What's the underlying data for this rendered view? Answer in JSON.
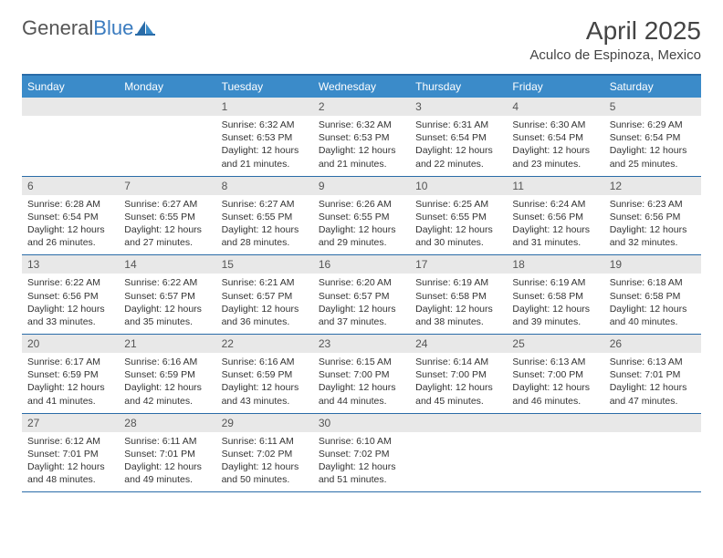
{
  "logo": {
    "general": "General",
    "blue": "Blue"
  },
  "title": "April 2025",
  "location": "Aculco de Espinoza, Mexico",
  "colors": {
    "header_bg": "#3b8bc9",
    "header_text": "#ffffff",
    "border": "#2a6ca8",
    "daynum_bg": "#e8e8e8",
    "body_text": "#333333",
    "logo_blue": "#3a7bbf"
  },
  "day_headers": [
    "Sunday",
    "Monday",
    "Tuesday",
    "Wednesday",
    "Thursday",
    "Friday",
    "Saturday"
  ],
  "weeks": [
    [
      {
        "n": "",
        "lines": []
      },
      {
        "n": "",
        "lines": []
      },
      {
        "n": "1",
        "lines": [
          "Sunrise: 6:32 AM",
          "Sunset: 6:53 PM",
          "Daylight: 12 hours and 21 minutes."
        ]
      },
      {
        "n": "2",
        "lines": [
          "Sunrise: 6:32 AM",
          "Sunset: 6:53 PM",
          "Daylight: 12 hours and 21 minutes."
        ]
      },
      {
        "n": "3",
        "lines": [
          "Sunrise: 6:31 AM",
          "Sunset: 6:54 PM",
          "Daylight: 12 hours and 22 minutes."
        ]
      },
      {
        "n": "4",
        "lines": [
          "Sunrise: 6:30 AM",
          "Sunset: 6:54 PM",
          "Daylight: 12 hours and 23 minutes."
        ]
      },
      {
        "n": "5",
        "lines": [
          "Sunrise: 6:29 AM",
          "Sunset: 6:54 PM",
          "Daylight: 12 hours and 25 minutes."
        ]
      }
    ],
    [
      {
        "n": "6",
        "lines": [
          "Sunrise: 6:28 AM",
          "Sunset: 6:54 PM",
          "Daylight: 12 hours and 26 minutes."
        ]
      },
      {
        "n": "7",
        "lines": [
          "Sunrise: 6:27 AM",
          "Sunset: 6:55 PM",
          "Daylight: 12 hours and 27 minutes."
        ]
      },
      {
        "n": "8",
        "lines": [
          "Sunrise: 6:27 AM",
          "Sunset: 6:55 PM",
          "Daylight: 12 hours and 28 minutes."
        ]
      },
      {
        "n": "9",
        "lines": [
          "Sunrise: 6:26 AM",
          "Sunset: 6:55 PM",
          "Daylight: 12 hours and 29 minutes."
        ]
      },
      {
        "n": "10",
        "lines": [
          "Sunrise: 6:25 AM",
          "Sunset: 6:55 PM",
          "Daylight: 12 hours and 30 minutes."
        ]
      },
      {
        "n": "11",
        "lines": [
          "Sunrise: 6:24 AM",
          "Sunset: 6:56 PM",
          "Daylight: 12 hours and 31 minutes."
        ]
      },
      {
        "n": "12",
        "lines": [
          "Sunrise: 6:23 AM",
          "Sunset: 6:56 PM",
          "Daylight: 12 hours and 32 minutes."
        ]
      }
    ],
    [
      {
        "n": "13",
        "lines": [
          "Sunrise: 6:22 AM",
          "Sunset: 6:56 PM",
          "Daylight: 12 hours and 33 minutes."
        ]
      },
      {
        "n": "14",
        "lines": [
          "Sunrise: 6:22 AM",
          "Sunset: 6:57 PM",
          "Daylight: 12 hours and 35 minutes."
        ]
      },
      {
        "n": "15",
        "lines": [
          "Sunrise: 6:21 AM",
          "Sunset: 6:57 PM",
          "Daylight: 12 hours and 36 minutes."
        ]
      },
      {
        "n": "16",
        "lines": [
          "Sunrise: 6:20 AM",
          "Sunset: 6:57 PM",
          "Daylight: 12 hours and 37 minutes."
        ]
      },
      {
        "n": "17",
        "lines": [
          "Sunrise: 6:19 AM",
          "Sunset: 6:58 PM",
          "Daylight: 12 hours and 38 minutes."
        ]
      },
      {
        "n": "18",
        "lines": [
          "Sunrise: 6:19 AM",
          "Sunset: 6:58 PM",
          "Daylight: 12 hours and 39 minutes."
        ]
      },
      {
        "n": "19",
        "lines": [
          "Sunrise: 6:18 AM",
          "Sunset: 6:58 PM",
          "Daylight: 12 hours and 40 minutes."
        ]
      }
    ],
    [
      {
        "n": "20",
        "lines": [
          "Sunrise: 6:17 AM",
          "Sunset: 6:59 PM",
          "Daylight: 12 hours and 41 minutes."
        ]
      },
      {
        "n": "21",
        "lines": [
          "Sunrise: 6:16 AM",
          "Sunset: 6:59 PM",
          "Daylight: 12 hours and 42 minutes."
        ]
      },
      {
        "n": "22",
        "lines": [
          "Sunrise: 6:16 AM",
          "Sunset: 6:59 PM",
          "Daylight: 12 hours and 43 minutes."
        ]
      },
      {
        "n": "23",
        "lines": [
          "Sunrise: 6:15 AM",
          "Sunset: 7:00 PM",
          "Daylight: 12 hours and 44 minutes."
        ]
      },
      {
        "n": "24",
        "lines": [
          "Sunrise: 6:14 AM",
          "Sunset: 7:00 PM",
          "Daylight: 12 hours and 45 minutes."
        ]
      },
      {
        "n": "25",
        "lines": [
          "Sunrise: 6:13 AM",
          "Sunset: 7:00 PM",
          "Daylight: 12 hours and 46 minutes."
        ]
      },
      {
        "n": "26",
        "lines": [
          "Sunrise: 6:13 AM",
          "Sunset: 7:01 PM",
          "Daylight: 12 hours and 47 minutes."
        ]
      }
    ],
    [
      {
        "n": "27",
        "lines": [
          "Sunrise: 6:12 AM",
          "Sunset: 7:01 PM",
          "Daylight: 12 hours and 48 minutes."
        ]
      },
      {
        "n": "28",
        "lines": [
          "Sunrise: 6:11 AM",
          "Sunset: 7:01 PM",
          "Daylight: 12 hours and 49 minutes."
        ]
      },
      {
        "n": "29",
        "lines": [
          "Sunrise: 6:11 AM",
          "Sunset: 7:02 PM",
          "Daylight: 12 hours and 50 minutes."
        ]
      },
      {
        "n": "30",
        "lines": [
          "Sunrise: 6:10 AM",
          "Sunset: 7:02 PM",
          "Daylight: 12 hours and 51 minutes."
        ]
      },
      {
        "n": "",
        "lines": []
      },
      {
        "n": "",
        "lines": []
      },
      {
        "n": "",
        "lines": []
      }
    ]
  ]
}
